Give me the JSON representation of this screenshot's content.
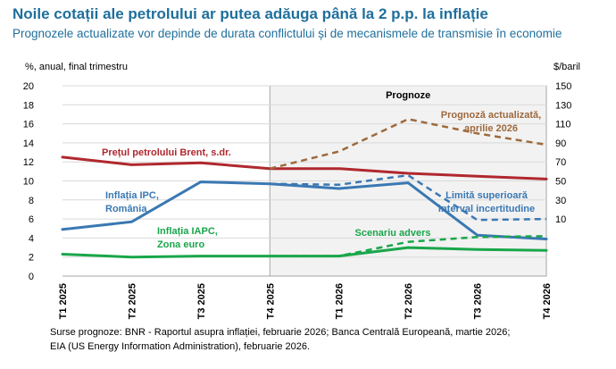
{
  "header": {
    "title": "Noile cotații ale petrolului ar putea adăuga până la 2 p.p. la inflație",
    "subtitle": "Prognozele actualizate vor depinde de durata conflictului și de mecanismele de transmisie în economie"
  },
  "footer": {
    "sources_line1": "Surse prognoze: BNR - Raportul asupra inflației, februarie 2026; Banca Centrală Europeană, martie 2026;",
    "sources_line2": "EIA (US Energy Information Administration), februarie 2026."
  },
  "chart_data": {
    "type": "line",
    "categories": [
      "T1 2025",
      "T2 2025",
      "T3 2025",
      "T4 2025",
      "T1 2026",
      "T2 2026",
      "T3 2026",
      "T4 2026"
    ],
    "ylabel_left": "%, anual, final trimestru",
    "ylabel_right": "$/baril",
    "ylim_left": [
      0,
      20
    ],
    "yticks_left": [
      0,
      2,
      4,
      6,
      8,
      10,
      12,
      14,
      16,
      18,
      20
    ],
    "ylim_right": [
      -50,
      150
    ],
    "yticks_right": [
      10,
      30,
      50,
      70,
      90,
      110,
      130,
      150
    ],
    "forecast_label": "Prognoze",
    "forecast_start": "T4 2025",
    "colors": {
      "brent": "#b0282e",
      "brent_updated": "#9e6a3d",
      "ipc": "#3a78b3",
      "ipc_upper": "#3a78b3",
      "iapc": "#19a64a",
      "iapc_adverse": "#19a64a",
      "forecast_shade": "#f2f2f2"
    },
    "series": [
      {
        "id": "brent",
        "name": "Prețul petrolului Brent, s.dr.",
        "axis": "right",
        "style": "solid",
        "values": [
          75,
          67,
          69,
          63,
          63,
          58,
          55,
          52
        ]
      },
      {
        "id": "brent_updated",
        "name": "Prognoză actualizată, aprilie 2026",
        "axis": "right",
        "style": "dashed",
        "values": [
          null,
          null,
          null,
          63,
          81,
          115,
          100,
          88
        ]
      },
      {
        "id": "ipc",
        "name": "Inflația IPC, România",
        "axis": "left",
        "style": "solid",
        "values": [
          4.9,
          5.7,
          9.9,
          9.7,
          9.2,
          9.8,
          4.3,
          3.9
        ]
      },
      {
        "id": "ipc_upper",
        "name": "Limită superioară interval incertitudine",
        "axis": "left",
        "style": "dashed",
        "values": [
          null,
          null,
          null,
          9.7,
          9.6,
          10.6,
          5.9,
          6.0
        ]
      },
      {
        "id": "iapc",
        "name": "Inflația IAPC, Zona euro",
        "axis": "left",
        "style": "solid",
        "values": [
          2.3,
          2.0,
          2.1,
          2.1,
          2.1,
          3.0,
          2.8,
          2.7
        ]
      },
      {
        "id": "iapc_adverse",
        "name": "Scenariu advers",
        "axis": "left",
        "style": "dashed",
        "values": [
          null,
          null,
          null,
          2.1,
          2.1,
          3.6,
          4.1,
          4.2
        ]
      }
    ]
  }
}
